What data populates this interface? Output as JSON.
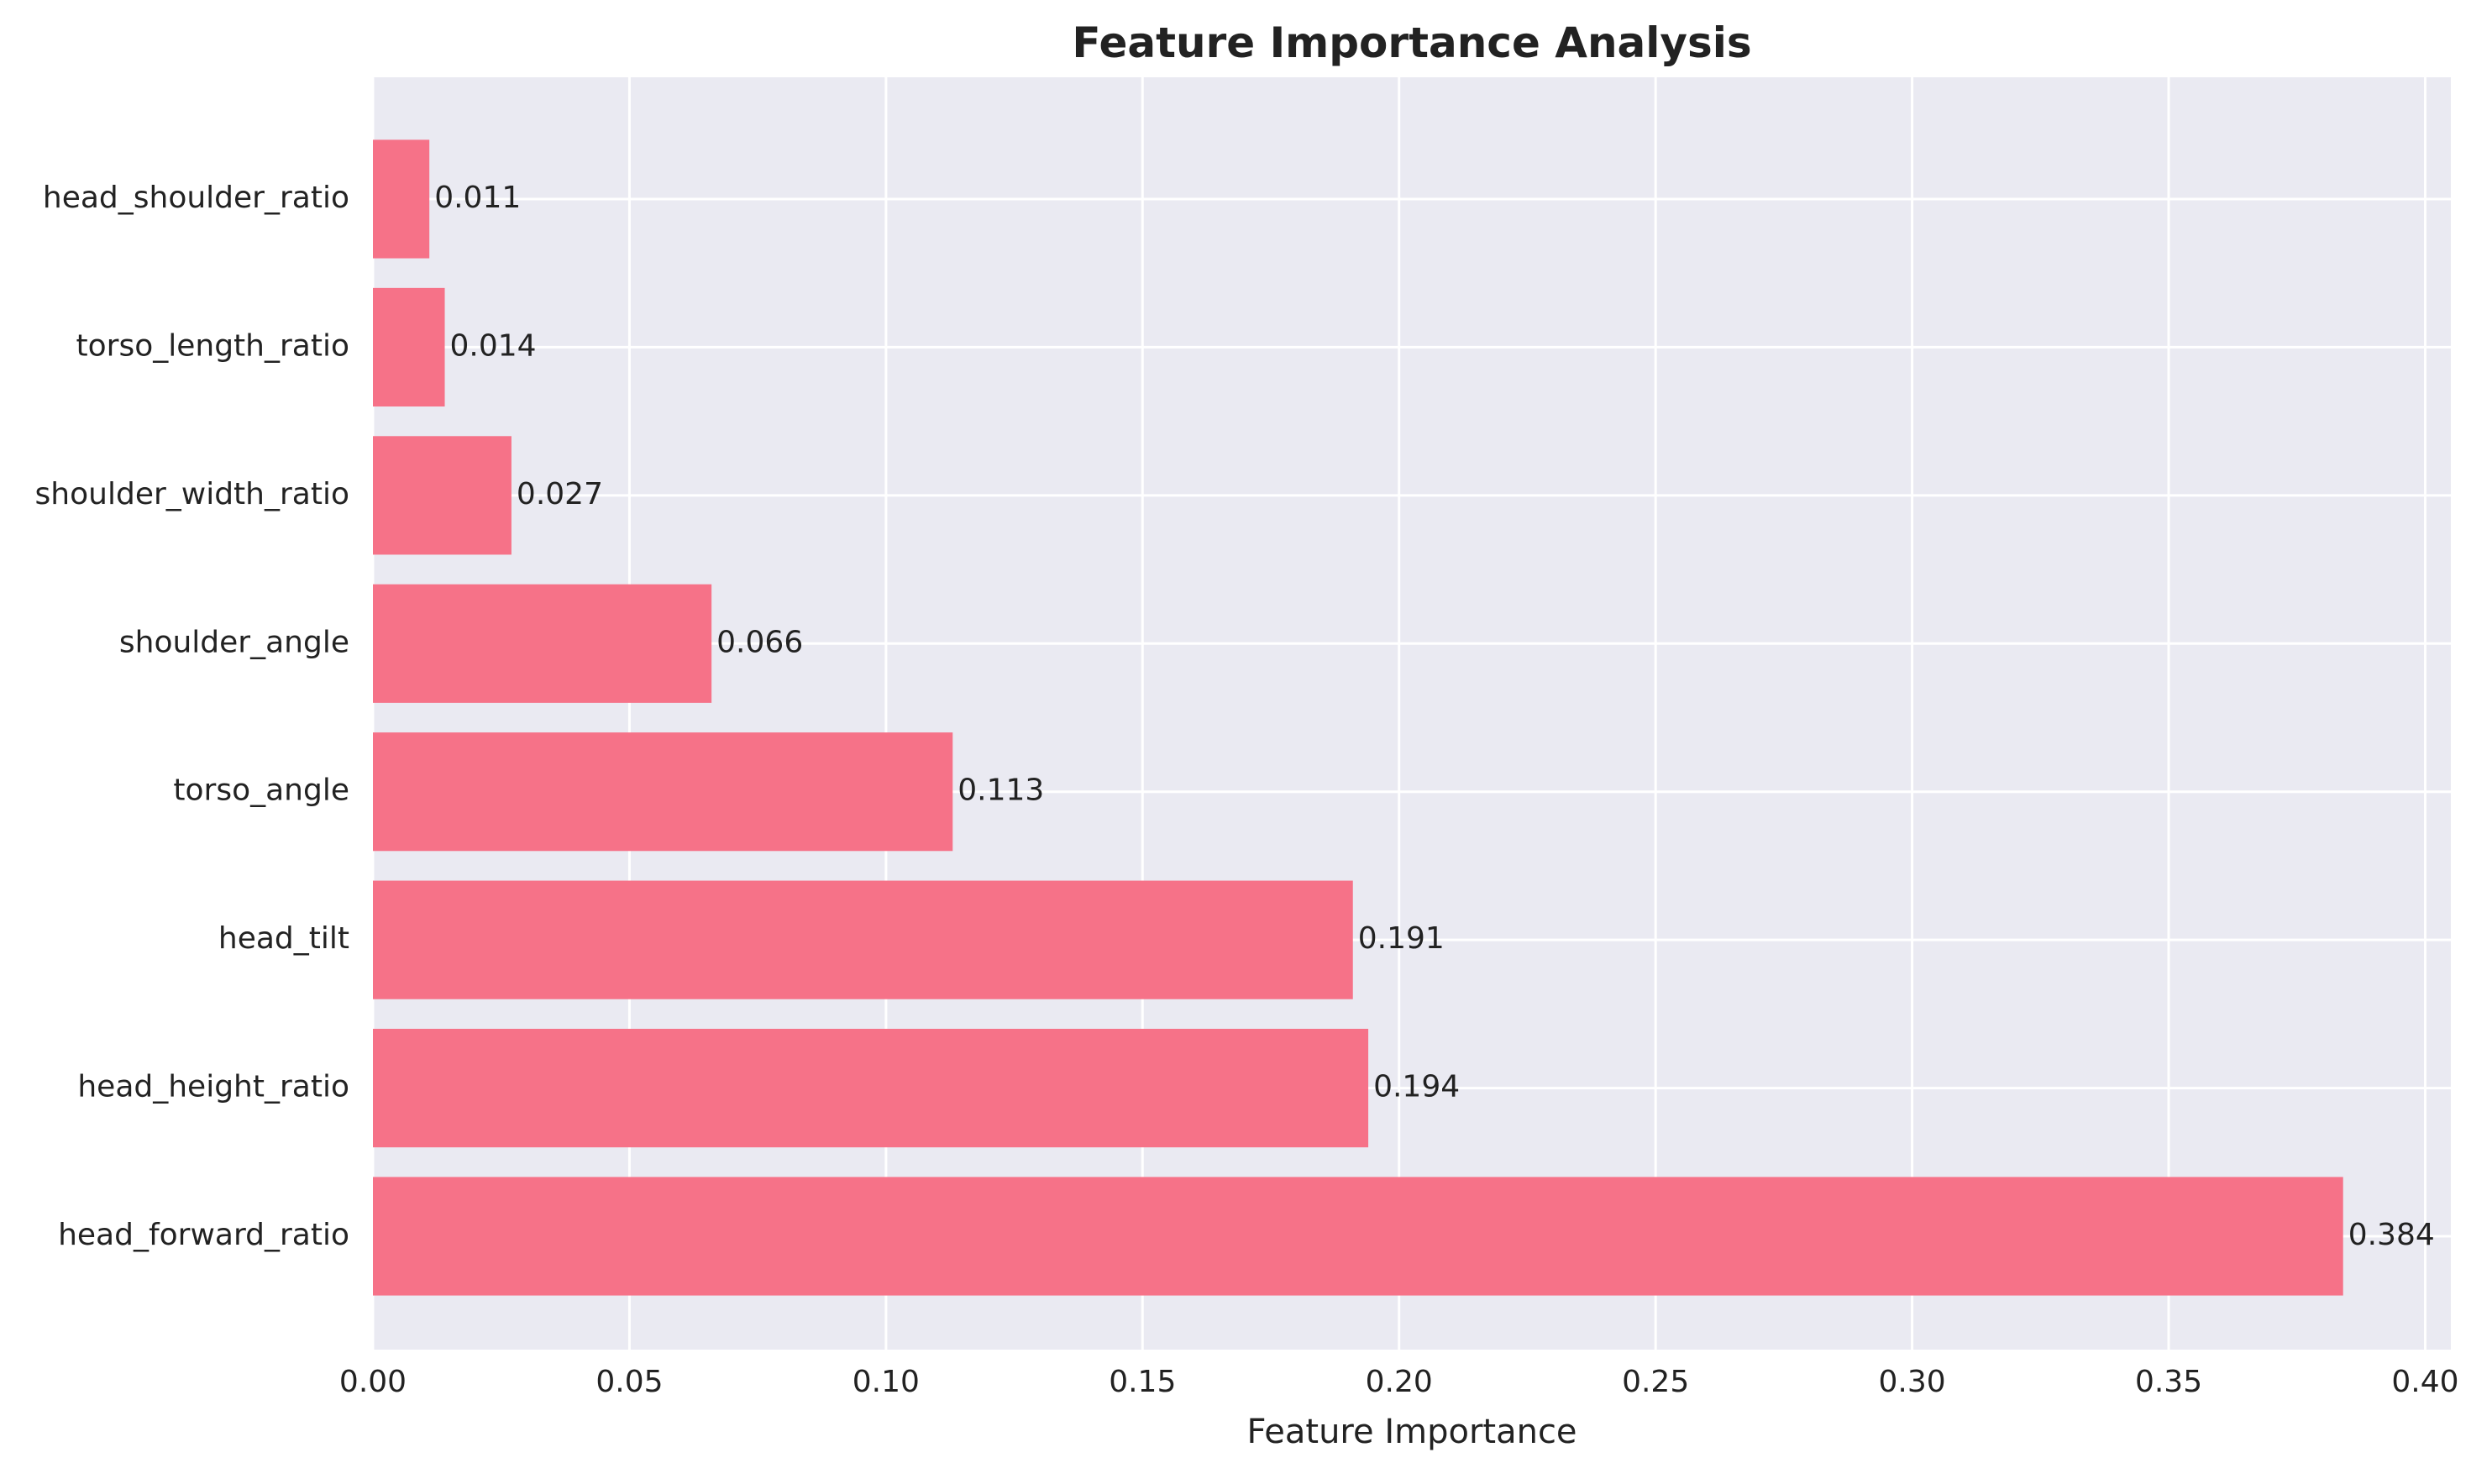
{
  "chart_data": {
    "type": "bar",
    "orientation": "horizontal",
    "title": "Feature Importance Analysis",
    "xlabel": "Feature Importance",
    "ylabel": "",
    "categories": [
      "head_forward_ratio",
      "head_height_ratio",
      "head_tilt",
      "torso_angle",
      "shoulder_angle",
      "shoulder_width_ratio",
      "torso_length_ratio",
      "head_shoulder_ratio"
    ],
    "values": [
      0.384,
      0.194,
      0.191,
      0.113,
      0.066,
      0.027,
      0.014,
      0.011
    ],
    "value_labels": [
      "0.384",
      "0.194",
      "0.191",
      "0.113",
      "0.066",
      "0.027",
      "0.014",
      "0.011"
    ],
    "xlim": [
      0,
      0.405
    ],
    "xticks": [
      0.0,
      0.05,
      0.1,
      0.15,
      0.2,
      0.25,
      0.3,
      0.35,
      0.4
    ],
    "xtick_labels": [
      "0.00",
      "0.05",
      "0.10",
      "0.15",
      "0.20",
      "0.25",
      "0.30",
      "0.35",
      "0.40"
    ],
    "grid": true,
    "colors": {
      "bar": "#f67288",
      "plot_background": "#eaeaf2",
      "grid": "#ffffff",
      "text": "#222222"
    }
  }
}
